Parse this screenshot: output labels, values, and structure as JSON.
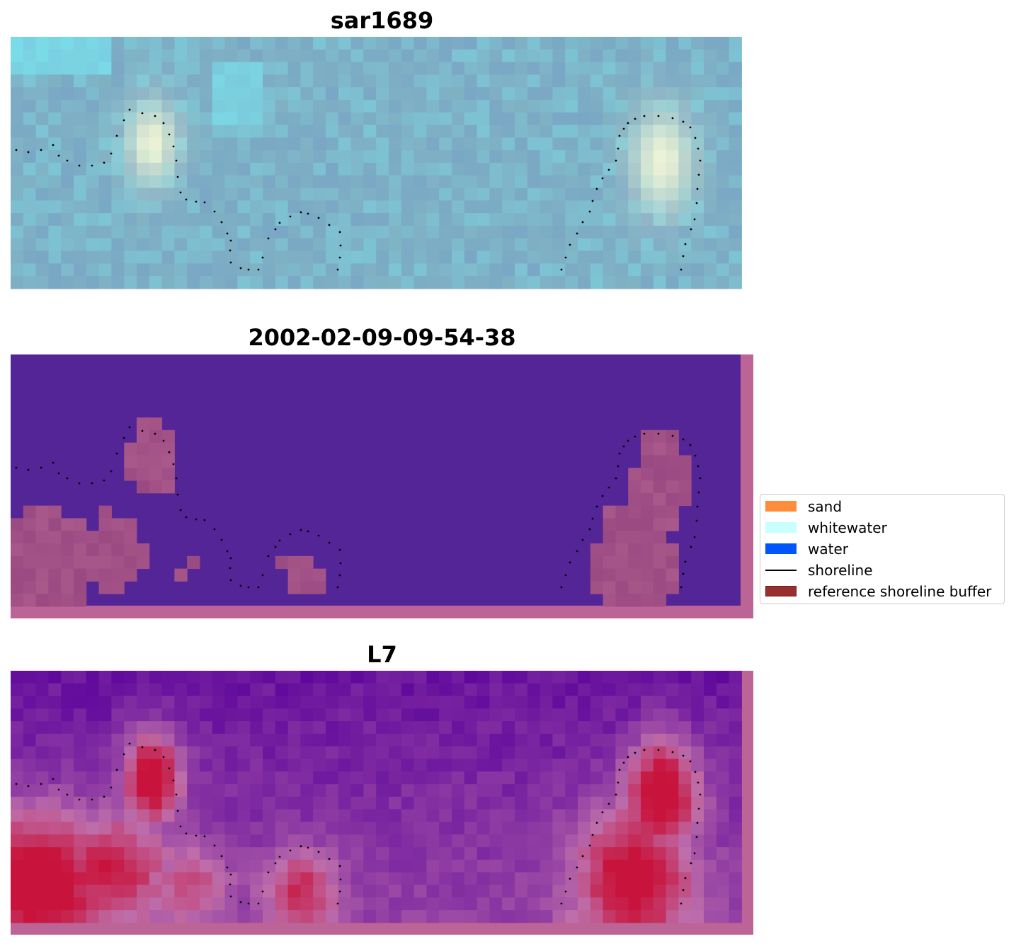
{
  "panels": [
    {
      "title": "sar1689",
      "style": "rgb"
    },
    {
      "title": "2002-02-09-09-54-38",
      "style": "classified"
    },
    {
      "title": "L7",
      "style": "index"
    }
  ],
  "legend": {
    "items": [
      {
        "label": "sand",
        "type": "patch",
        "color": "#ff8c3a"
      },
      {
        "label": "whitewater",
        "type": "patch",
        "color": "#c8ffff"
      },
      {
        "label": "water",
        "type": "patch",
        "color": "#0055ff"
      },
      {
        "label": "shoreline",
        "type": "line",
        "color": "#000000"
      },
      {
        "label": "reference shoreline buffer",
        "type": "patch",
        "color": "#9a2f2f",
        "edge": "#6b1a1a"
      }
    ]
  },
  "colors": {
    "rgb_base": "#7fb0c4",
    "classified_water": "#532596",
    "classified_buffer": "#9a4a82",
    "index_low": "#6a149e",
    "index_high": "#c8143c",
    "buffer_border": "#bd6496",
    "shoreline": "#000000"
  }
}
